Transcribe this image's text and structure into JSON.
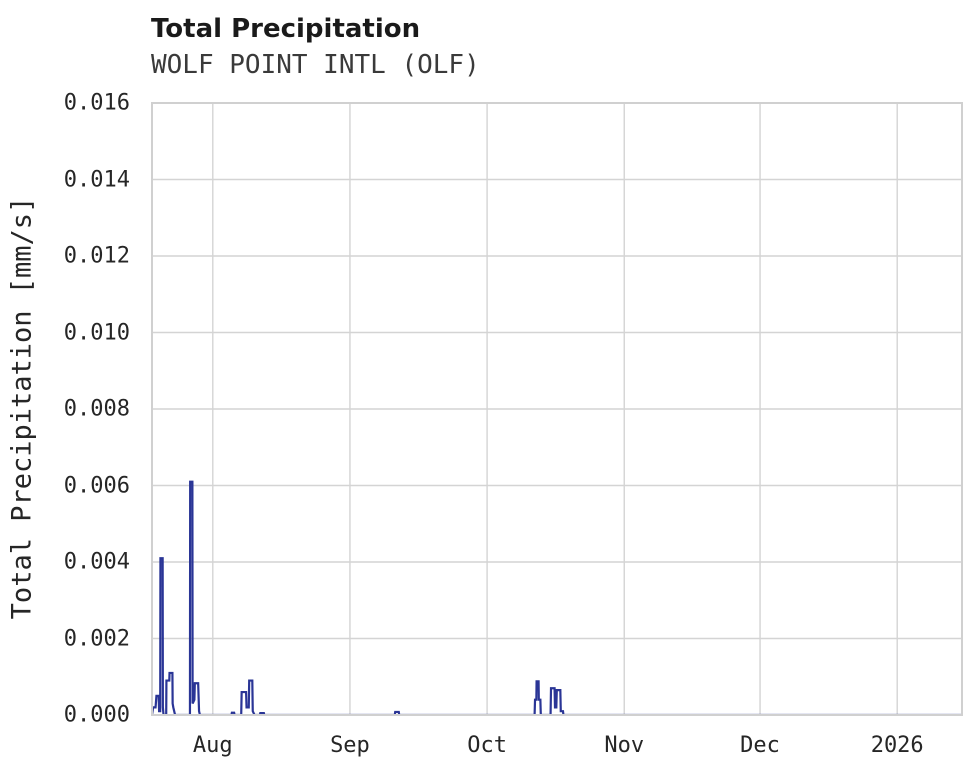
{
  "header": {
    "title": "Total Precipitation",
    "subtitle": "WOLF POINT INTL (OLF)"
  },
  "colors": {
    "line": "#2a3596",
    "grid": "#d4d4d4",
    "border": "#d0d0d0",
    "background": "#ffffff",
    "title_text": "#1a1a1a",
    "tick_text": "#262626"
  },
  "chart_data": {
    "type": "line",
    "title": "Total Precipitation",
    "subtitle": "WOLF POINT INTL (OLF)",
    "xlabel": "",
    "ylabel": "Total Precipitation [mm/s]",
    "ylim": [
      0,
      0.016
    ],
    "grid": true,
    "legend": false,
    "yticks": [
      {
        "value": 0.0,
        "label": "0.000"
      },
      {
        "value": 0.002,
        "label": "0.002"
      },
      {
        "value": 0.004,
        "label": "0.004"
      },
      {
        "value": 0.006,
        "label": "0.006"
      },
      {
        "value": 0.008,
        "label": "0.008"
      },
      {
        "value": 0.01,
        "label": "0.010"
      },
      {
        "value": 0.012,
        "label": "0.012"
      },
      {
        "value": 0.014,
        "label": "0.014"
      },
      {
        "value": 0.016,
        "label": "0.016"
      }
    ],
    "x_domain_days": [
      0,
      182.5
    ],
    "xticks": [
      {
        "day": 13.7,
        "label": "Aug"
      },
      {
        "day": 44.6,
        "label": "Sep"
      },
      {
        "day": 75.5,
        "label": "Oct"
      },
      {
        "day": 106.4,
        "label": "Nov"
      },
      {
        "day": 137.0,
        "label": "Dec"
      },
      {
        "day": 167.9,
        "label": "2026"
      }
    ],
    "series": [
      {
        "name": "Total Precipitation",
        "color": "#2a3596",
        "points": [
          [
            0,
            0
          ],
          [
            0.25,
            0.0002
          ],
          [
            0.8,
            0.0002
          ],
          [
            1.0,
            0.0005
          ],
          [
            1.5,
            0.0005
          ],
          [
            1.6,
            0.0001
          ],
          [
            1.85,
            0.0001
          ],
          [
            1.9,
            0.0041
          ],
          [
            2.4,
            0.0041
          ],
          [
            2.45,
            0.0002
          ],
          [
            2.6,
            0
          ],
          [
            3.2,
            0
          ],
          [
            3.25,
            0.0009
          ],
          [
            3.9,
            0.0009
          ],
          [
            3.95,
            0.0011
          ],
          [
            4.6,
            0.0011
          ],
          [
            4.65,
            0.0003
          ],
          [
            4.8,
            0.0002
          ],
          [
            5.2,
            0
          ],
          [
            8.55,
            0
          ],
          [
            8.6,
            0.0061
          ],
          [
            9.1,
            0.0061
          ],
          [
            9.15,
            0.0003
          ],
          [
            9.55,
            0.0004
          ],
          [
            9.65,
            0.00083
          ],
          [
            10.4,
            0.00083
          ],
          [
            10.6,
            0.0001
          ],
          [
            10.8,
            0
          ],
          [
            17.9,
            0
          ],
          [
            18.0,
            6e-05
          ],
          [
            18.5,
            6e-05
          ],
          [
            18.6,
            0
          ],
          [
            20.1,
            0
          ],
          [
            20.2,
            0.0006
          ],
          [
            21.2,
            0.0006
          ],
          [
            21.3,
            0.0002
          ],
          [
            21.8,
            0.0002
          ],
          [
            21.9,
            0.0009
          ],
          [
            22.6,
            0.0009
          ],
          [
            22.7,
            0.0001
          ],
          [
            23.1,
            0
          ],
          [
            24.3,
            0
          ],
          [
            24.4,
            5e-05
          ],
          [
            25.2,
            5e-05
          ],
          [
            25.3,
            0
          ],
          [
            54.7,
            0
          ],
          [
            54.8,
            8e-05
          ],
          [
            55.6,
            8e-05
          ],
          [
            55.7,
            0
          ],
          [
            86.2,
            0
          ],
          [
            86.3,
            0.0004
          ],
          [
            86.6,
            0.0004
          ],
          [
            86.65,
            0.00088
          ],
          [
            87.1,
            0.00088
          ],
          [
            87.15,
            0.0004
          ],
          [
            87.5,
            0.0004
          ],
          [
            87.6,
            0
          ],
          [
            89.8,
            0
          ],
          [
            89.9,
            0.0007
          ],
          [
            90.7,
            0.0007
          ],
          [
            90.8,
            0.0002
          ],
          [
            91.1,
            0.0002
          ],
          [
            91.2,
            0.00065
          ],
          [
            92.0,
            0.00065
          ],
          [
            92.1,
            0.0001
          ],
          [
            92.6,
            0.0001
          ],
          [
            92.7,
            0
          ],
          [
            182.5,
            0
          ]
        ]
      }
    ]
  }
}
